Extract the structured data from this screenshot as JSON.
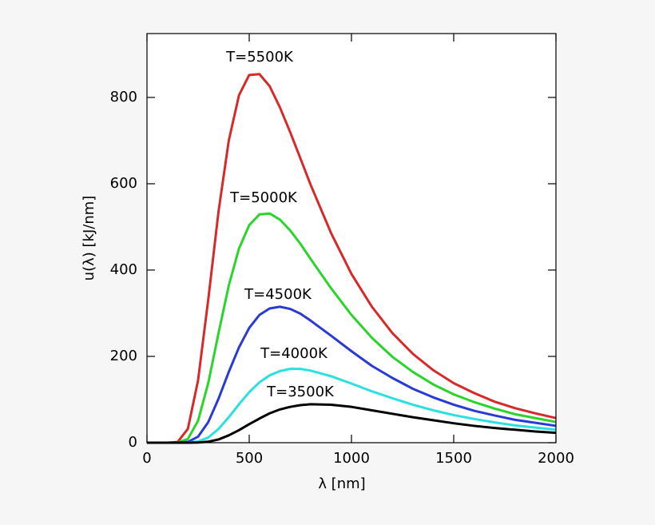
{
  "chart_data": {
    "type": "line",
    "x_label": "λ [nm]",
    "y_label": "u(λ)  [kJ/nm]",
    "x": [
      0,
      100,
      150,
      200,
      250,
      300,
      350,
      400,
      450,
      500,
      550,
      600,
      650,
      700,
      750,
      800,
      900,
      1000,
      1100,
      1200,
      1300,
      1400,
      1500,
      1600,
      1700,
      1800,
      1900,
      2000
    ],
    "series": [
      {
        "name": "T=5500K",
        "color": "#d62a2a",
        "values": [
          0,
          0,
          1.7,
          32,
          145,
          333,
          536,
          700,
          805,
          852,
          854,
          826,
          777,
          720,
          659,
          598,
          486,
          391,
          315,
          254,
          206,
          168,
          138,
          115,
          95,
          80,
          68,
          57
        ]
      },
      {
        "name": "T=5000K",
        "color": "#2ad42a",
        "values": [
          0,
          0,
          0.3,
          8.7,
          51,
          139,
          254,
          364,
          450,
          504,
          529,
          531,
          517,
          492,
          461,
          426,
          358,
          296,
          243,
          199,
          164,
          135,
          112,
          94,
          79,
          66,
          57,
          48
        ]
      },
      {
        "name": "T=4500K",
        "color": "#2a3ad4",
        "values": [
          0,
          0,
          0,
          1.8,
          14,
          48,
          102,
          164,
          221,
          266,
          296,
          311,
          315,
          310,
          299,
          283,
          248,
          212,
          178,
          150,
          125,
          105,
          88,
          74,
          63,
          53,
          46,
          39
        ]
      },
      {
        "name": "T=4000K",
        "color": "#2ae0e0",
        "values": [
          0,
          0,
          0,
          0.2,
          2.8,
          12,
          32,
          59,
          89,
          117,
          140,
          156,
          166,
          171,
          171,
          167,
          154,
          137,
          119,
          103,
          88,
          75,
          64,
          55,
          47,
          40,
          35,
          30
        ]
      },
      {
        "name": "T=3500K",
        "color": "#000000",
        "values": [
          0,
          0,
          0,
          0,
          0.4,
          2.3,
          7.5,
          17,
          29,
          43,
          56,
          68,
          77,
          83,
          87,
          89,
          88,
          83,
          75,
          67,
          59,
          52,
          45,
          39,
          34,
          30,
          26,
          23
        ]
      }
    ],
    "xlim": [
      0,
      2000
    ],
    "xticks": [
      0,
      500,
      1000,
      1500,
      2000
    ],
    "ylim": [
      0,
      948
    ],
    "yticks": [
      0,
      200,
      400,
      600,
      800
    ]
  }
}
